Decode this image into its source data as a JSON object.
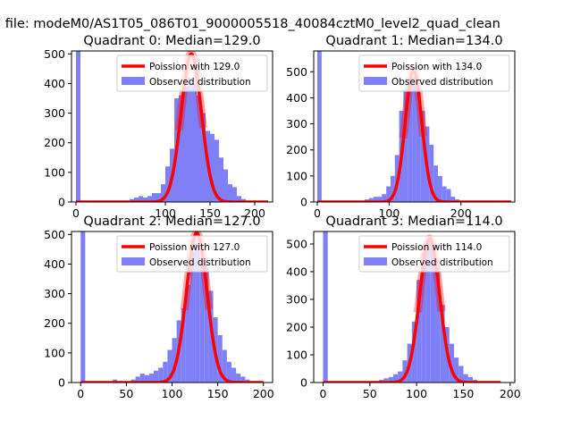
{
  "figure": {
    "suptitle": "n file: modeM0/AS1T05_086T01_9000005518_40084cztM0_level2_quad_clean"
  },
  "colors": {
    "hist": "#7f7ff8",
    "poisson": "#ff0000",
    "axes": "#000000",
    "background": "#ffffff"
  },
  "chart_data": [
    {
      "type": "bar",
      "title": "Quadrant 0: Median=129.0",
      "xlim": [
        -5,
        220
      ],
      "ylim": [
        0,
        510
      ],
      "xticks": [
        0,
        100,
        150,
        200
      ],
      "yticks": [
        0,
        100,
        200,
        300,
        400,
        500
      ],
      "legend": {
        "location": "upper right",
        "entries": [
          "Poission with 129.0",
          "Observed distribution"
        ]
      },
      "histogram": {
        "bin_width": 5,
        "bins": [
          {
            "x": 0,
            "count": 510
          },
          {
            "x": 60,
            "count": 10
          },
          {
            "x": 65,
            "count": 15
          },
          {
            "x": 70,
            "count": 20
          },
          {
            "x": 75,
            "count": 15
          },
          {
            "x": 80,
            "count": 20
          },
          {
            "x": 85,
            "count": 30
          },
          {
            "x": 90,
            "count": 30
          },
          {
            "x": 95,
            "count": 60
          },
          {
            "x": 100,
            "count": 120
          },
          {
            "x": 105,
            "count": 180
          },
          {
            "x": 110,
            "count": 350
          },
          {
            "x": 115,
            "count": 360
          },
          {
            "x": 120,
            "count": 390
          },
          {
            "x": 125,
            "count": 420
          },
          {
            "x": 130,
            "count": 400
          },
          {
            "x": 135,
            "count": 360
          },
          {
            "x": 140,
            "count": 300
          },
          {
            "x": 145,
            "count": 240
          },
          {
            "x": 150,
            "count": 230
          },
          {
            "x": 155,
            "count": 210
          },
          {
            "x": 160,
            "count": 150
          },
          {
            "x": 165,
            "count": 110
          },
          {
            "x": 170,
            "count": 60
          },
          {
            "x": 175,
            "count": 50
          },
          {
            "x": 180,
            "count": 20
          },
          {
            "x": 185,
            "count": 10
          }
        ]
      },
      "poisson": {
        "mean": 129.0,
        "peak": 500,
        "x_range": [
          0,
          215
        ]
      }
    },
    {
      "type": "bar",
      "title": "Quadrant 1: Median=134.0",
      "xlim": [
        -5,
        275
      ],
      "ylim": [
        0,
        580
      ],
      "xticks": [
        0,
        100,
        200
      ],
      "yticks": [
        0,
        100,
        200,
        300,
        400,
        500
      ],
      "legend": {
        "location": "upper right",
        "entries": [
          "Poission with 134.0",
          "Observed distribution"
        ]
      },
      "histogram": {
        "bin_width": 6,
        "bins": [
          {
            "x": 0,
            "count": 580
          },
          {
            "x": 66,
            "count": 10
          },
          {
            "x": 72,
            "count": 15
          },
          {
            "x": 78,
            "count": 20
          },
          {
            "x": 84,
            "count": 20
          },
          {
            "x": 90,
            "count": 30
          },
          {
            "x": 96,
            "count": 60
          },
          {
            "x": 102,
            "count": 100
          },
          {
            "x": 108,
            "count": 180
          },
          {
            "x": 114,
            "count": 350
          },
          {
            "x": 120,
            "count": 430
          },
          {
            "x": 126,
            "count": 470
          },
          {
            "x": 132,
            "count": 480
          },
          {
            "x": 138,
            "count": 420
          },
          {
            "x": 144,
            "count": 350
          },
          {
            "x": 150,
            "count": 290
          },
          {
            "x": 156,
            "count": 220
          },
          {
            "x": 162,
            "count": 140
          },
          {
            "x": 168,
            "count": 100
          },
          {
            "x": 174,
            "count": 60
          },
          {
            "x": 180,
            "count": 50
          },
          {
            "x": 186,
            "count": 20
          },
          {
            "x": 192,
            "count": 10
          }
        ]
      },
      "poisson": {
        "mean": 134.0,
        "peak": 505,
        "x_range": [
          0,
          270
        ]
      }
    },
    {
      "type": "bar",
      "title": "Quadrant 2: Median=127.0",
      "xlim": [
        -10,
        210
      ],
      "ylim": [
        0,
        510
      ],
      "xticks": [
        0,
        50,
        100,
        150,
        200
      ],
      "yticks": [
        0,
        100,
        200,
        300,
        400,
        500
      ],
      "legend": {
        "location": "upper right",
        "entries": [
          "Poission with 127.0",
          "Observed distribution"
        ]
      },
      "histogram": {
        "bin_width": 5,
        "bins": [
          {
            "x": 0,
            "count": 510
          },
          {
            "x": 35,
            "count": 10
          },
          {
            "x": 40,
            "count": 5
          },
          {
            "x": 55,
            "count": 10
          },
          {
            "x": 60,
            "count": 20
          },
          {
            "x": 65,
            "count": 30
          },
          {
            "x": 70,
            "count": 25
          },
          {
            "x": 75,
            "count": 30
          },
          {
            "x": 80,
            "count": 40
          },
          {
            "x": 85,
            "count": 50
          },
          {
            "x": 90,
            "count": 70
          },
          {
            "x": 95,
            "count": 110
          },
          {
            "x": 100,
            "count": 150
          },
          {
            "x": 105,
            "count": 210
          },
          {
            "x": 110,
            "count": 250
          },
          {
            "x": 115,
            "count": 330
          },
          {
            "x": 120,
            "count": 440
          },
          {
            "x": 125,
            "count": 470
          },
          {
            "x": 130,
            "count": 420
          },
          {
            "x": 135,
            "count": 390
          },
          {
            "x": 140,
            "count": 310
          },
          {
            "x": 145,
            "count": 220
          },
          {
            "x": 150,
            "count": 160
          },
          {
            "x": 155,
            "count": 110
          },
          {
            "x": 160,
            "count": 70
          },
          {
            "x": 165,
            "count": 50
          },
          {
            "x": 170,
            "count": 30
          },
          {
            "x": 175,
            "count": 20
          },
          {
            "x": 180,
            "count": 10
          }
        ]
      },
      "poisson": {
        "mean": 127.0,
        "peak": 505,
        "x_range": [
          0,
          200
        ]
      }
    },
    {
      "type": "bar",
      "title": "Quadrant 3: Median=114.0",
      "xlim": [
        -10,
        205
      ],
      "ylim": [
        0,
        545
      ],
      "xticks": [
        0,
        50,
        100,
        150,
        200
      ],
      "yticks": [
        0,
        100,
        200,
        300,
        400,
        500
      ],
      "legend": {
        "location": "upper right",
        "entries": [
          "Poission with 114.0",
          "Observed distribution"
        ]
      },
      "histogram": {
        "bin_width": 5,
        "bins": [
          {
            "x": 0,
            "count": 545
          },
          {
            "x": 40,
            "count": 5
          },
          {
            "x": 60,
            "count": 10
          },
          {
            "x": 65,
            "count": 15
          },
          {
            "x": 70,
            "count": 20
          },
          {
            "x": 75,
            "count": 30
          },
          {
            "x": 80,
            "count": 40
          },
          {
            "x": 85,
            "count": 80
          },
          {
            "x": 90,
            "count": 140
          },
          {
            "x": 95,
            "count": 220
          },
          {
            "x": 100,
            "count": 370
          },
          {
            "x": 105,
            "count": 470
          },
          {
            "x": 110,
            "count": 510
          },
          {
            "x": 115,
            "count": 500
          },
          {
            "x": 120,
            "count": 420
          },
          {
            "x": 125,
            "count": 280
          },
          {
            "x": 130,
            "count": 200
          },
          {
            "x": 135,
            "count": 140
          },
          {
            "x": 140,
            "count": 90
          },
          {
            "x": 145,
            "count": 60
          },
          {
            "x": 150,
            "count": 30
          },
          {
            "x": 155,
            "count": 20
          },
          {
            "x": 160,
            "count": 10
          }
        ]
      },
      "poisson": {
        "mean": 114.0,
        "peak": 520,
        "x_range": [
          0,
          190
        ]
      }
    }
  ]
}
